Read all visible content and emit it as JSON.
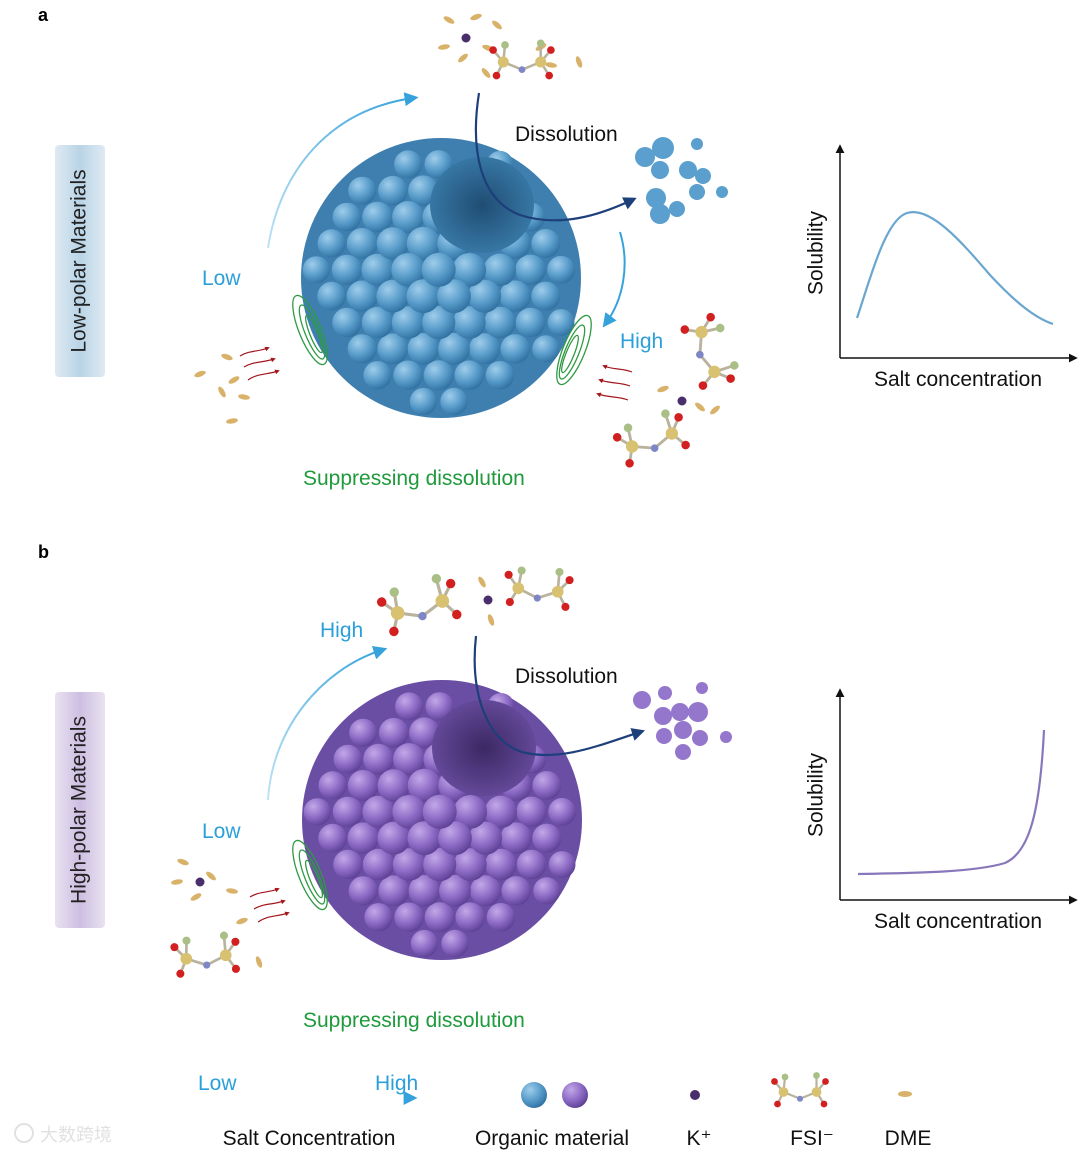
{
  "panel_a": {
    "letter": "a",
    "side_label": "Low-polar Materials",
    "low": "Low",
    "high": "High",
    "dissolution": "Dissolution",
    "suppressing": "Suppressing dissolution",
    "plot": {
      "ylabel": "Solubility",
      "xlabel": "Salt concentration",
      "curve": "rise-then-fall"
    },
    "colors": {
      "sphere": "#5fa3d1",
      "side_bg": "#b9d4e6",
      "curve": "#6aa6cf"
    }
  },
  "panel_b": {
    "letter": "b",
    "side_label": "High-polar Materials",
    "low": "Low",
    "high": "High",
    "dissolution": "Dissolution",
    "suppressing": "Suppressing dissolution",
    "plot": {
      "ylabel": "Solubility",
      "xlabel": "Salt concentration",
      "curve": "flat-then-steep-rise"
    },
    "colors": {
      "sphere": "#8e6cc6",
      "side_bg": "#cdbfe1",
      "curve": "#8877bb"
    }
  },
  "legend": {
    "arrow_low": "Low",
    "arrow_high": "High",
    "salt": "Salt Concentration",
    "organic": "Organic material",
    "k": "K⁺",
    "fsi": "FSI⁻",
    "dme": "DME"
  },
  "watermark": "大数跨境",
  "colors": {
    "accent_blue": "#3aa4dc",
    "dark_blue": "#1d3f7a",
    "green": "#1f9a3c",
    "dme": "#d9b26a",
    "k": "#4a2d6b",
    "o": "#d21f1f",
    "s": "#d8c170",
    "n": "#7f86c6",
    "f": "#a9bf86"
  }
}
